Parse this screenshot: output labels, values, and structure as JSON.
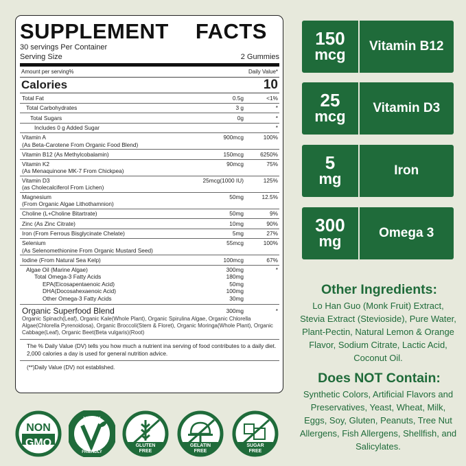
{
  "label": {
    "title_left": "SUPPLEMENT",
    "title_right": "FACTS",
    "servings": "30 servings Per Container",
    "serving_size_label": "Serving Size",
    "serving_size_value": "2 Gummies",
    "amount_header": "Amount per serving%",
    "dv_header": "Daily Value*",
    "calories_label": "Calories",
    "calories_value": "10",
    "rows": [
      {
        "name": "Total Fat",
        "sub": "",
        "amount": "0.5g",
        "dv": "<1%",
        "indent": 0
      },
      {
        "name": "Total Carbohydrates",
        "sub": "",
        "amount": "3 g",
        "dv": "*",
        "indent": 1
      },
      {
        "name": "Total Sugars",
        "sub": "",
        "amount": "0g",
        "dv": "*",
        "indent": 2
      },
      {
        "name": "Includes 0 g Added Sugar",
        "sub": "",
        "amount": "",
        "dv": "*",
        "indent": 3
      },
      {
        "name": "Vitamin A",
        "sub": "(As Beta-Carotene From Organic Food Blend)",
        "amount": "900mcg",
        "dv": "100%",
        "indent": 0
      },
      {
        "name": "Vitamin B12 (As Methylcobalamin)",
        "sub": "",
        "amount": "150mcg",
        "dv": "6250%",
        "indent": 0
      },
      {
        "name": "Vitamin K2",
        "sub": "(As Menaquinone MK-7 From Chickpea)",
        "amount": "90mcg",
        "dv": "75%",
        "indent": 0
      },
      {
        "name": "Vitamin D3",
        "sub": "(as Cholecalciferol From Lichen)",
        "amount": "25mcg(1000 IU)",
        "dv": "125%",
        "indent": 0
      },
      {
        "name": "Magnesium",
        "sub": "(From Organic Algae Lithothamnion)",
        "amount": "50mg",
        "dv": "12.5%",
        "indent": 0
      },
      {
        "name": "Choline (L+Choline Bitartrate)",
        "sub": "",
        "amount": "50mg",
        "dv": "9%",
        "indent": 0
      },
      {
        "name": "Zinc (As Zinc Citrate)",
        "sub": "",
        "amount": "10mg",
        "dv": "90%",
        "indent": 0
      },
      {
        "name": "Iron (From Ferrous Bisglycinate Chelate)",
        "sub": "",
        "amount": "5mg",
        "dv": "27%",
        "indent": 0
      },
      {
        "name": "Selenium",
        "sub": "(As Selenomethionine From Organic Mustard Seed)",
        "amount": "55mcg",
        "dv": "100%",
        "indent": 0
      },
      {
        "name": "Iodine (From Natural Sea Kelp)",
        "sub": "",
        "amount": "100mcg",
        "dv": "67%",
        "indent": 0
      }
    ],
    "algae": [
      {
        "name": "Algae Oil (Marine Algae)",
        "amount": "300mg",
        "dv": "*",
        "indent": 1
      },
      {
        "name": "Total Omega-3 Fatty Acids",
        "amount": "180mg",
        "dv": "",
        "indent": 3
      },
      {
        "name": "EPA(Eicosapentaenoic Acid)",
        "amount": "50mg",
        "dv": "",
        "indent": 5
      },
      {
        "name": "DHA(Docosahexaenoic Acid)",
        "amount": "100mg",
        "dv": "",
        "indent": 5
      },
      {
        "name": "Other Omega-3 Fatty Acids",
        "amount": "30mg",
        "dv": "",
        "indent": 5
      }
    ],
    "blend": {
      "name": "Organic Superfood Blend",
      "amount": "300mg",
      "dv": "*",
      "ingredients": "Organic Spinach(Leaf), Organic Kale(Whole Plant), Organic Spirulina Algae, Organic Chlorella Algae(Chlorella Pyrenoidosa), Organic Broccoli(Stem & Floret), Organic Moringa(Whole Plant), Organic Cabbage(Leaf), Organic Beet(Beta vulgaris)(Root)"
    },
    "dv_note": "The % Daily Value (DV) tells you how much a nutrient ina serving of food contributes to a daily diet. 2,000 calories a day is used for general nutrition advice.",
    "dv_note2": "(**)Daily Value (DV) not established."
  },
  "highlights": [
    {
      "amount": "150",
      "unit": "mcg",
      "name": "Vitamin B12"
    },
    {
      "amount": "25",
      "unit": "mcg",
      "name": "Vitamin D3"
    },
    {
      "amount": "5",
      "unit": "mg",
      "name": "Iron"
    },
    {
      "amount": "300",
      "unit": "mg",
      "name": "Omega 3"
    }
  ],
  "other_ingredients": {
    "heading": "Other Ingredients:",
    "text": "Lo Han Guo (Monk Fruit) Extract, Stevia Extract (Stevioside), Pure Water, Plant-Pectin, Natural Lemon & Orange Flavor, Sodium Citrate, Lactic Acid, Coconut Oil."
  },
  "does_not_contain": {
    "heading": "Does NOT Contain:",
    "text": "Synthetic Colors, Artificial Flavors and Preservatives, Yeast, Wheat, Milk, Eggs, Soy, Gluten, Peanuts, Tree Nut Allergens, Fish Allergens, Shellfish, and Salicylates."
  },
  "badges": [
    {
      "icon": "non-gmo-icon",
      "text1": "NON",
      "text2": "GMO"
    },
    {
      "icon": "vegan-icon",
      "text1": "VEGAN",
      "text2": "FRIENDLY"
    },
    {
      "icon": "gluten-free-icon",
      "text1": "GLUTEN",
      "text2": "FREE"
    },
    {
      "icon": "gelatin-free-icon",
      "text1": "GELATIN",
      "text2": "FREE"
    },
    {
      "icon": "sugar-free-icon",
      "text1": "SUGAR",
      "text2": "FREE"
    }
  ],
  "colors": {
    "green": "#1f6b3a",
    "background": "#e7e9dc"
  }
}
